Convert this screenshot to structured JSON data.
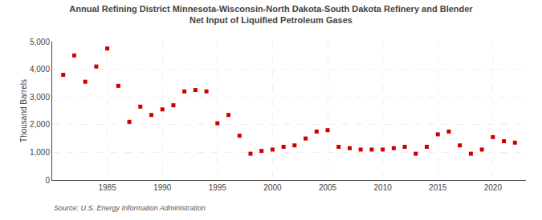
{
  "chart_data": {
    "type": "scatter",
    "title": "Annual Refining District Minnesota-Wisconsin-North Dakota-South Dakota Refinery and Blender\nNet Input of Liquified Petroleum Gases",
    "ylabel": "Thousand Barrels",
    "annotations": [
      "Source: U.S. Energy Information Administration"
    ],
    "x": [
      1981,
      1982,
      1983,
      1984,
      1985,
      1986,
      1987,
      1988,
      1989,
      1990,
      1991,
      1992,
      1993,
      1994,
      1995,
      1996,
      1997,
      1998,
      1999,
      2000,
      2001,
      2002,
      2003,
      2004,
      2005,
      2006,
      2007,
      2008,
      2009,
      2010,
      2011,
      2012,
      2013,
      2014,
      2015,
      2016,
      2017,
      2018,
      2019,
      2020,
      2021,
      2022
    ],
    "values": [
      3800,
      4500,
      3550,
      4100,
      4750,
      3400,
      2100,
      2650,
      2350,
      2550,
      2700,
      3200,
      3250,
      3200,
      2050,
      2350,
      1600,
      950,
      1050,
      1100,
      1200,
      1250,
      1500,
      1750,
      1800,
      1200,
      1150,
      1100,
      1100,
      1100,
      1150,
      1200,
      950,
      1200,
      1650,
      1750,
      1250,
      950,
      1100,
      1550,
      1400,
      1350
    ],
    "color": "#cc0000",
    "marker": "square",
    "xlim": [
      1980,
      2023
    ],
    "xticks": [
      1985,
      1990,
      1995,
      2000,
      2005,
      2010,
      2015,
      2020
    ],
    "ylim": [
      0,
      5000
    ],
    "yticks": [
      0,
      {
        "value": 1000,
        "label": "1,000"
      },
      {
        "value": 2000,
        "label": "2,000"
      },
      {
        "value": 3000,
        "label": "3,000"
      },
      {
        "value": 4000,
        "label": "4,000"
      },
      {
        "value": 5000,
        "label": "5,000"
      }
    ],
    "grid": true
  }
}
